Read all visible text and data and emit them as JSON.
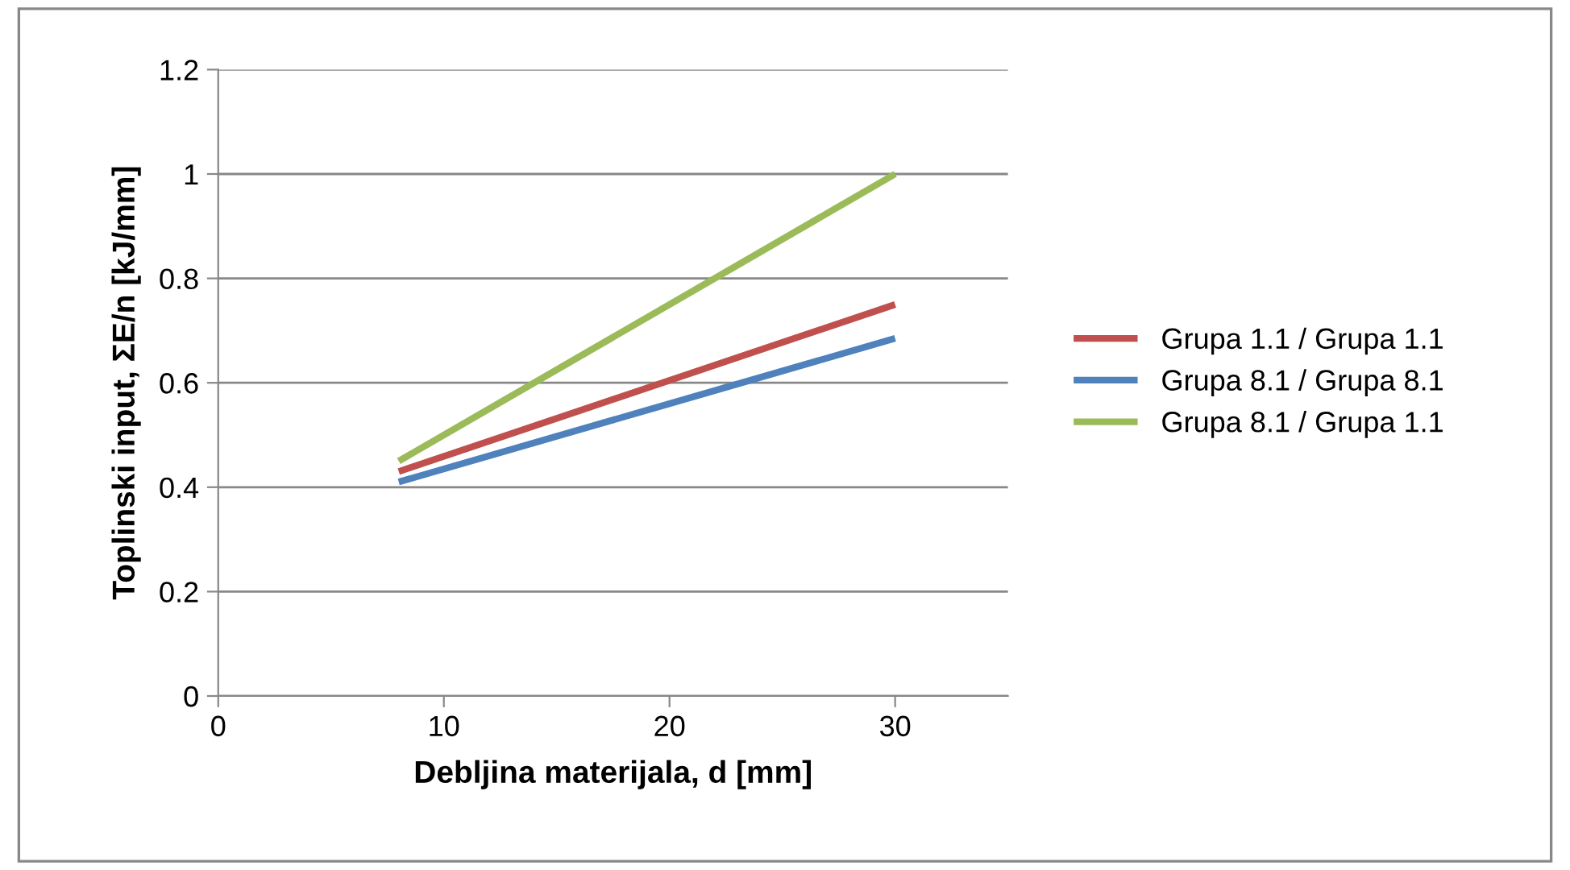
{
  "chart_data": {
    "type": "line",
    "xlabel": "Debljina materijala, d [mm]",
    "ylabel": "Toplinski input, ΣE/n [kJ/mm]",
    "x": [
      8,
      30
    ],
    "series": [
      {
        "name": "Grupa 1.1 / Grupa 1.1",
        "color": "#c0504d",
        "values": [
          0.43,
          0.75
        ]
      },
      {
        "name": "Grupa 8.1 / Grupa 8.1",
        "color": "#4f81bd",
        "values": [
          0.41,
          0.685
        ]
      },
      {
        "name": "Grupa 8.1 / Grupa 1.1",
        "color": "#9bbb59",
        "values": [
          0.45,
          1.0
        ]
      }
    ],
    "xlim": [
      0,
      35
    ],
    "xticks": [
      0,
      10,
      20,
      30
    ],
    "ylim": [
      0,
      1.2
    ],
    "yticks": [
      0,
      0.2,
      0.4,
      0.6,
      0.8,
      1,
      1.2
    ],
    "grid": "y",
    "legend": "right",
    "marker": "none",
    "line_style": "solid"
  }
}
